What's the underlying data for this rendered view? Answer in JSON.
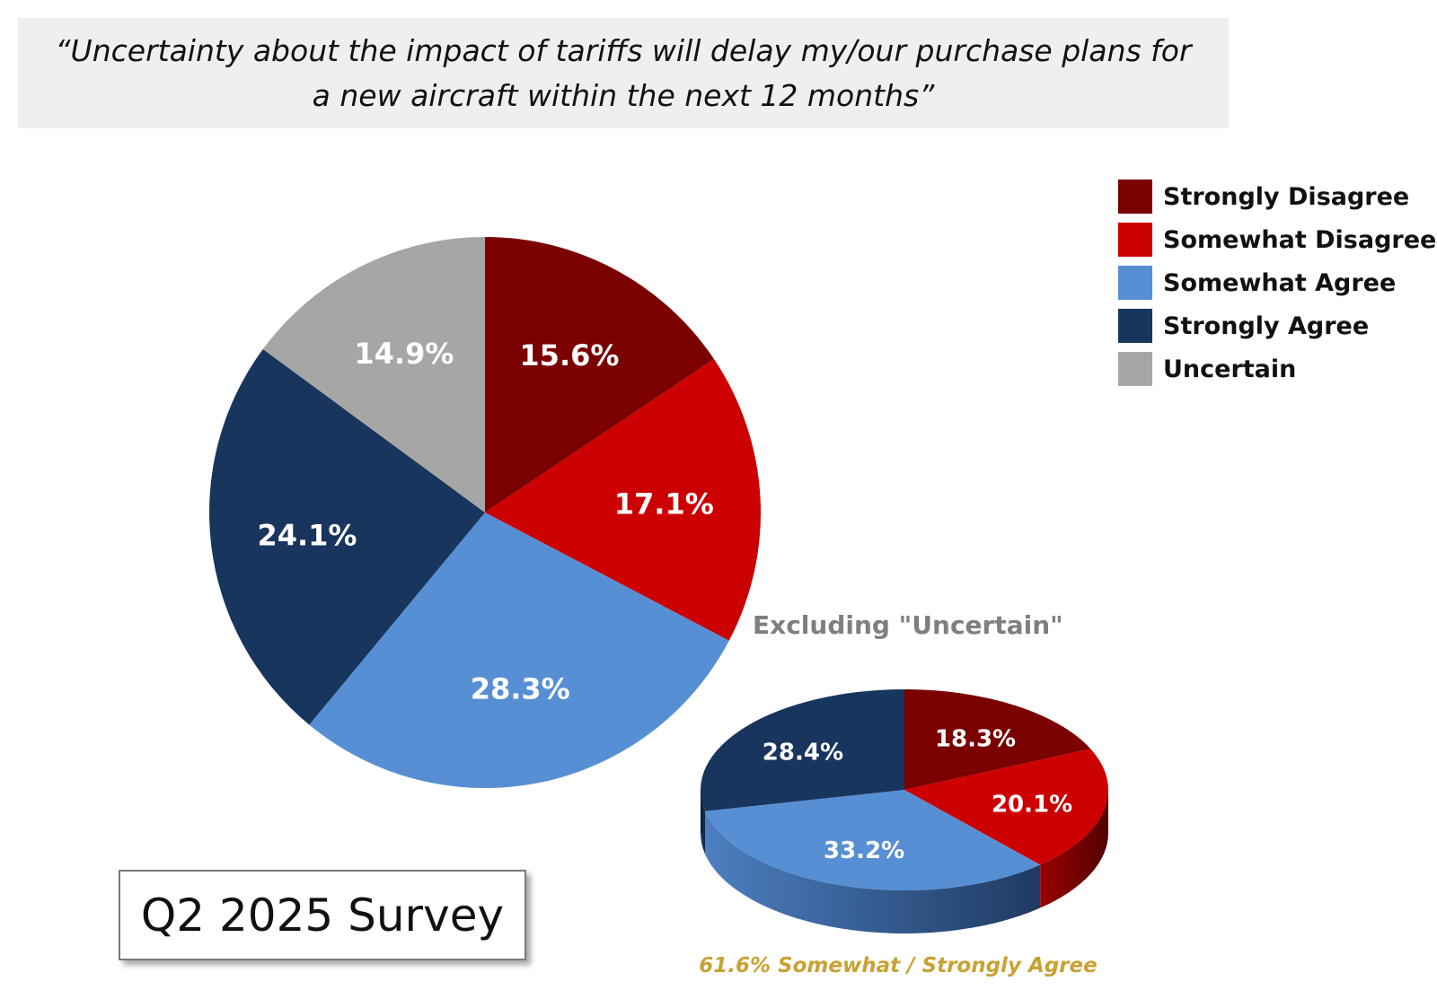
{
  "title": "“Uncertainty about the impact of tariffs will delay my/our purchase plans for a new aircraft within the next 12 months”",
  "survey_label": "Q2 2025 Survey",
  "subtitle": "Excluding \"Uncertain\"",
  "footnote": "61.6% Somewhat / Strongly Agree",
  "legend": [
    {
      "label": "Strongly Disagree",
      "color": "#7b0000"
    },
    {
      "label": "Somewhat Disagree",
      "color": "#cc0000"
    },
    {
      "label": "Somewhat Agree",
      "color": "#578fd4"
    },
    {
      "label": "Strongly Agree",
      "color": "#18355d"
    },
    {
      "label": "Uncertain",
      "color": "#a6a6a6"
    }
  ],
  "chart_data": [
    {
      "type": "pie",
      "categories": [
        "Strongly Disagree",
        "Somewhat Disagree",
        "Somewhat Agree",
        "Strongly Agree",
        "Uncertain"
      ],
      "values": [
        15.6,
        17.1,
        28.3,
        24.1,
        14.9
      ],
      "labels": [
        "15.6%",
        "17.1%",
        "28.3%",
        "24.1%",
        "14.9%"
      ],
      "colors": [
        "#7b0000",
        "#cc0000",
        "#578fd4",
        "#18355d",
        "#a6a6a6"
      ]
    },
    {
      "type": "pie",
      "title": "Excluding \"Uncertain\"",
      "categories": [
        "Strongly Disagree",
        "Somewhat Disagree",
        "Somewhat Agree",
        "Strongly Agree"
      ],
      "values": [
        18.3,
        20.1,
        33.2,
        28.4
      ],
      "labels": [
        "18.3%",
        "20.1%",
        "33.2%",
        "28.4%"
      ],
      "colors": [
        "#7b0000",
        "#cc0000",
        "#578fd4",
        "#18355d"
      ]
    }
  ]
}
